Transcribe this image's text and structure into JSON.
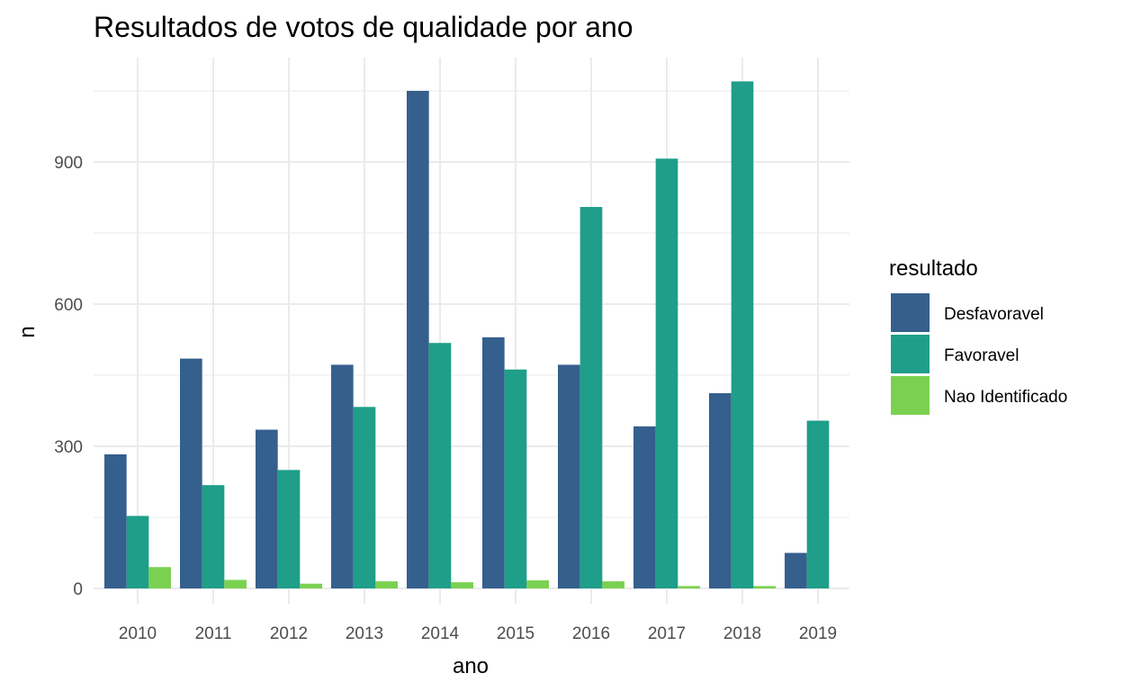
{
  "chart_data": {
    "type": "bar",
    "title": "Resultados de votos de qualidade por ano",
    "xlabel": "ano",
    "ylabel": "n",
    "categories": [
      "2010",
      "2011",
      "2012",
      "2013",
      "2014",
      "2015",
      "2016",
      "2017",
      "2018",
      "2019"
    ],
    "ylim": [
      0,
      1110
    ],
    "yticks": [
      0,
      300,
      600,
      900
    ],
    "grid": true,
    "legend": {
      "title": "resultado",
      "position": "right"
    },
    "series": [
      {
        "name": "Desfavoravel",
        "color": "#355F8D",
        "values": [
          283,
          485,
          335,
          472,
          1050,
          530,
          472,
          342,
          412,
          75
        ]
      },
      {
        "name": "Favoravel",
        "color": "#1F9E89",
        "values": [
          153,
          218,
          250,
          383,
          518,
          462,
          805,
          907,
          1070,
          354
        ]
      },
      {
        "name": "Nao Identificado",
        "color": "#7AD151",
        "values": [
          45,
          18,
          10,
          15,
          13,
          17,
          15,
          5,
          5,
          null
        ]
      }
    ]
  }
}
